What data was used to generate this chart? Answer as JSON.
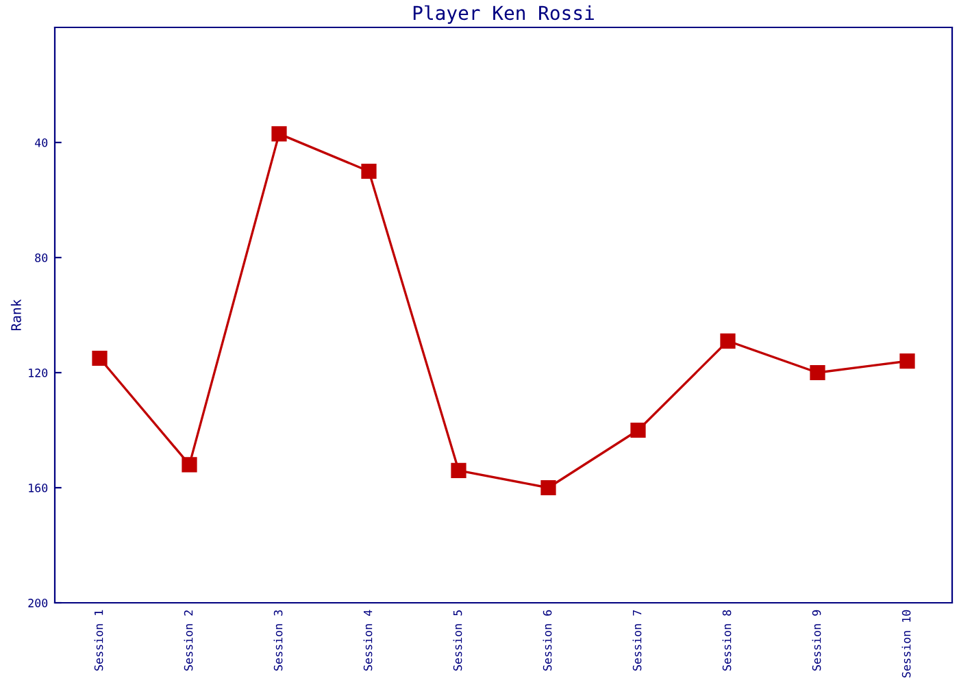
{
  "chart_data": {
    "type": "line",
    "title": "Player Ken Rossi",
    "ylabel": "Rank",
    "categories": [
      "Session 1",
      "Session 2",
      "Session 3",
      "Session 4",
      "Session 5",
      "Session 6",
      "Session 7",
      "Session 8",
      "Session 9",
      "Session 10"
    ],
    "series": [
      {
        "color": "#c00000",
        "values": [
          115,
          152,
          37,
          50,
          154,
          160,
          140,
          109,
          120,
          116
        ]
      }
    ],
    "ylim": [
      200,
      0
    ],
    "yticks": [
      40,
      80,
      120,
      160,
      200
    ],
    "marker": "square",
    "line_style": "solid",
    "grid": false
  }
}
